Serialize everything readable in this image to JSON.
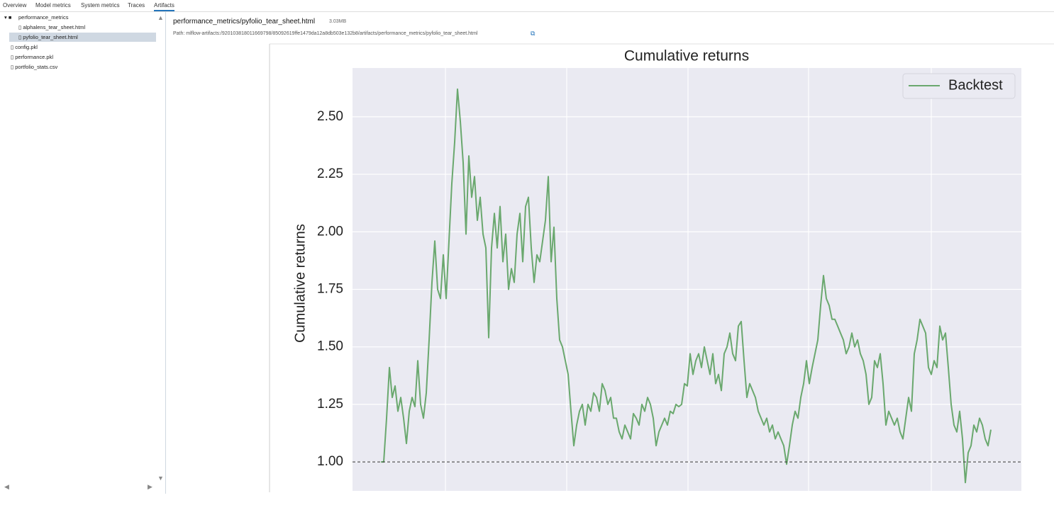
{
  "tabs": [
    "Overview",
    "Model metrics",
    "System metrics",
    "Traces",
    "Artifacts"
  ],
  "file_tree": [
    {
      "name": "performance_metrics"
    },
    {
      "name": "alphalens_tear_sheet.html"
    },
    {
      "name": "pyfolio_tear_sheet.html"
    },
    {
      "name": "config.pkl"
    },
    {
      "name": "performance.pkl"
    },
    {
      "name": "portfolio_stats.csv"
    }
  ],
  "artifact": {
    "title": "performance_metrics/pyfolio_tear_sheet.html",
    "size": "3.03MB",
    "path": "Path: mlflow-artifacts:/920103818011669798/85092619ffe1479da12a8db503e132b8/artifacts/performance_metrics/pyfolio_tear_sheet.html"
  },
  "chart_data": {
    "type": "line",
    "title": "Cumulative returns",
    "ylabel": "Cumulative returns",
    "ylim": [
      0.874,
      2.712
    ],
    "yticks": [
      {
        "value": 1.0,
        "label": "1.00"
      },
      {
        "value": 1.25,
        "label": "1.25"
      },
      {
        "value": 1.5,
        "label": "1.50"
      },
      {
        "value": 1.75,
        "label": "1.75"
      },
      {
        "value": 2.0,
        "label": "2.00"
      },
      {
        "value": 2.25,
        "label": "2.25"
      },
      {
        "value": 2.5,
        "label": "2.50"
      }
    ],
    "grid": true,
    "legend": "upper right",
    "reference_line": 1.0,
    "series": [
      {
        "name": "Backtest",
        "color": "#6aa86e",
        "values": [
          1.0,
          1.0,
          1.19,
          1.41,
          1.28,
          1.33,
          1.22,
          1.28,
          1.19,
          1.08,
          1.22,
          1.28,
          1.24,
          1.44,
          1.25,
          1.19,
          1.3,
          1.53,
          1.78,
          1.96,
          1.75,
          1.71,
          1.9,
          1.71,
          1.96,
          2.21,
          2.39,
          2.62,
          2.48,
          2.3,
          1.99,
          2.33,
          2.15,
          2.24,
          2.05,
          2.15,
          1.99,
          1.93,
          1.54,
          1.93,
          2.08,
          1.93,
          2.11,
          1.87,
          1.99,
          1.75,
          1.84,
          1.78,
          1.99,
          2.08,
          1.87,
          2.11,
          2.15,
          1.93,
          1.78,
          1.9,
          1.87,
          1.96,
          2.05,
          2.24,
          1.87,
          2.02,
          1.71,
          1.53,
          1.5,
          1.44,
          1.38,
          1.22,
          1.07,
          1.16,
          1.22,
          1.25,
          1.16,
          1.25,
          1.22,
          1.3,
          1.28,
          1.22,
          1.34,
          1.31,
          1.25,
          1.28,
          1.19,
          1.19,
          1.13,
          1.1,
          1.16,
          1.13,
          1.1,
          1.21,
          1.19,
          1.16,
          1.25,
          1.22,
          1.28,
          1.25,
          1.19,
          1.07,
          1.13,
          1.16,
          1.19,
          1.16,
          1.22,
          1.21,
          1.25,
          1.24,
          1.25,
          1.34,
          1.33,
          1.47,
          1.38,
          1.44,
          1.47,
          1.41,
          1.5,
          1.44,
          1.38,
          1.47,
          1.34,
          1.38,
          1.31,
          1.47,
          1.5,
          1.56,
          1.47,
          1.44,
          1.59,
          1.61,
          1.44,
          1.28,
          1.34,
          1.31,
          1.28,
          1.22,
          1.19,
          1.16,
          1.19,
          1.13,
          1.16,
          1.1,
          1.13,
          1.1,
          1.07,
          0.99,
          1.07,
          1.16,
          1.22,
          1.19,
          1.28,
          1.34,
          1.44,
          1.34,
          1.41,
          1.47,
          1.53,
          1.68,
          1.81,
          1.71,
          1.68,
          1.62,
          1.62,
          1.59,
          1.56,
          1.53,
          1.47,
          1.5,
          1.56,
          1.5,
          1.53,
          1.47,
          1.44,
          1.38,
          1.25,
          1.28,
          1.44,
          1.41,
          1.47,
          1.34,
          1.16,
          1.22,
          1.19,
          1.16,
          1.19,
          1.13,
          1.1,
          1.19,
          1.28,
          1.22,
          1.47,
          1.53,
          1.62,
          1.59,
          1.56,
          1.41,
          1.38,
          1.44,
          1.41,
          1.59,
          1.53,
          1.56,
          1.41,
          1.25,
          1.16,
          1.13,
          1.22,
          1.1,
          0.91,
          1.04,
          1.07,
          1.16,
          1.13,
          1.19,
          1.16,
          1.1,
          1.07,
          1.14
        ]
      }
    ]
  }
}
